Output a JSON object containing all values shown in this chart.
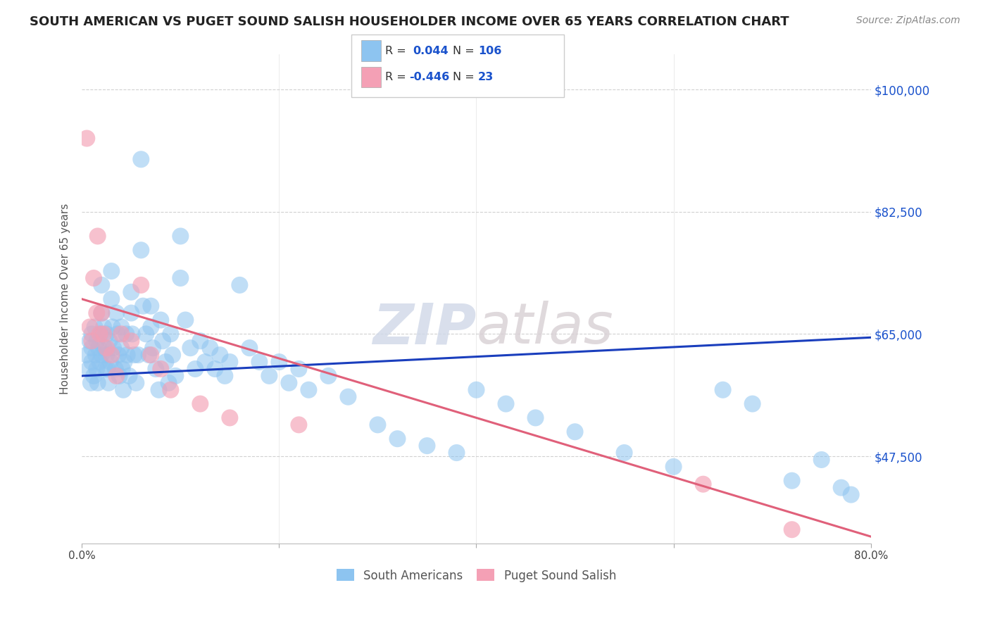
{
  "title": "SOUTH AMERICAN VS PUGET SOUND SALISH HOUSEHOLDER INCOME OVER 65 YEARS CORRELATION CHART",
  "source": "Source: ZipAtlas.com",
  "ylabel": "Householder Income Over 65 years",
  "xlim": [
    0,
    0.8
  ],
  "ylim": [
    35000,
    105000
  ],
  "yticks": [
    47500,
    65000,
    82500,
    100000
  ],
  "ytick_labels": [
    "$47,500",
    "$65,000",
    "$82,500",
    "$100,000"
  ],
  "xticks": [
    0.0,
    0.2,
    0.4,
    0.6,
    0.8
  ],
  "xtick_labels": [
    "0.0%",
    "",
    "",
    "",
    "80.0%"
  ],
  "r_blue": "0.044",
  "n_blue": "106",
  "r_pink": "-0.446",
  "n_pink": "23",
  "blue_color": "#8DC4F0",
  "pink_color": "#F4A0B5",
  "blue_line_color": "#1A3EBD",
  "pink_line_color": "#E0607A",
  "watermark_zip": "ZIP",
  "watermark_atlas": "atlas",
  "blue_scatter_x": [
    0.005,
    0.007,
    0.008,
    0.009,
    0.01,
    0.01,
    0.01,
    0.012,
    0.013,
    0.014,
    0.015,
    0.015,
    0.016,
    0.017,
    0.018,
    0.019,
    0.02,
    0.02,
    0.02,
    0.022,
    0.023,
    0.024,
    0.025,
    0.025,
    0.026,
    0.027,
    0.028,
    0.029,
    0.03,
    0.03,
    0.031,
    0.032,
    0.034,
    0.035,
    0.036,
    0.037,
    0.038,
    0.04,
    0.04,
    0.041,
    0.042,
    0.043,
    0.045,
    0.046,
    0.048,
    0.05,
    0.05,
    0.051,
    0.053,
    0.055,
    0.057,
    0.06,
    0.06,
    0.062,
    0.065,
    0.068,
    0.07,
    0.07,
    0.072,
    0.075,
    0.078,
    0.08,
    0.082,
    0.085,
    0.088,
    0.09,
    0.092,
    0.095,
    0.1,
    0.1,
    0.105,
    0.11,
    0.115,
    0.12,
    0.125,
    0.13,
    0.135,
    0.14,
    0.145,
    0.15,
    0.16,
    0.17,
    0.18,
    0.19,
    0.2,
    0.21,
    0.22,
    0.23,
    0.25,
    0.27,
    0.3,
    0.32,
    0.35,
    0.38,
    0.4,
    0.43,
    0.46,
    0.5,
    0.55,
    0.6,
    0.65,
    0.68,
    0.72,
    0.75,
    0.77,
    0.78
  ],
  "blue_scatter_y": [
    62000,
    60000,
    64000,
    58000,
    63000,
    61000,
    65000,
    59000,
    66000,
    62000,
    60000,
    64000,
    58000,
    63000,
    61000,
    65000,
    72000,
    68000,
    62000,
    66000,
    63000,
    60000,
    65000,
    62000,
    60000,
    58000,
    64000,
    61000,
    74000,
    70000,
    66000,
    63000,
    60000,
    68000,
    65000,
    62000,
    59000,
    66000,
    63000,
    60000,
    57000,
    61000,
    65000,
    62000,
    59000,
    71000,
    68000,
    65000,
    62000,
    58000,
    62000,
    90000,
    77000,
    69000,
    65000,
    62000,
    69000,
    66000,
    63000,
    60000,
    57000,
    67000,
    64000,
    61000,
    58000,
    65000,
    62000,
    59000,
    79000,
    73000,
    67000,
    63000,
    60000,
    64000,
    61000,
    63000,
    60000,
    62000,
    59000,
    61000,
    72000,
    63000,
    61000,
    59000,
    61000,
    58000,
    60000,
    57000,
    59000,
    56000,
    52000,
    50000,
    49000,
    48000,
    57000,
    55000,
    53000,
    51000,
    48000,
    46000,
    57000,
    55000,
    44000,
    47000,
    43000,
    42000
  ],
  "pink_scatter_x": [
    0.005,
    0.008,
    0.01,
    0.012,
    0.015,
    0.016,
    0.018,
    0.02,
    0.022,
    0.025,
    0.03,
    0.035,
    0.04,
    0.05,
    0.06,
    0.07,
    0.08,
    0.09,
    0.12,
    0.15,
    0.22,
    0.63,
    0.72
  ],
  "pink_scatter_y": [
    93000,
    66000,
    64000,
    73000,
    68000,
    79000,
    65000,
    68000,
    65000,
    63000,
    62000,
    59000,
    65000,
    64000,
    72000,
    62000,
    60000,
    57000,
    55000,
    53000,
    52000,
    43500,
    37000
  ],
  "blue_line_x": [
    0.0,
    0.8
  ],
  "blue_line_y": [
    59000,
    64500
  ],
  "pink_line_x": [
    0.0,
    0.8
  ],
  "pink_line_y": [
    70000,
    36000
  ]
}
